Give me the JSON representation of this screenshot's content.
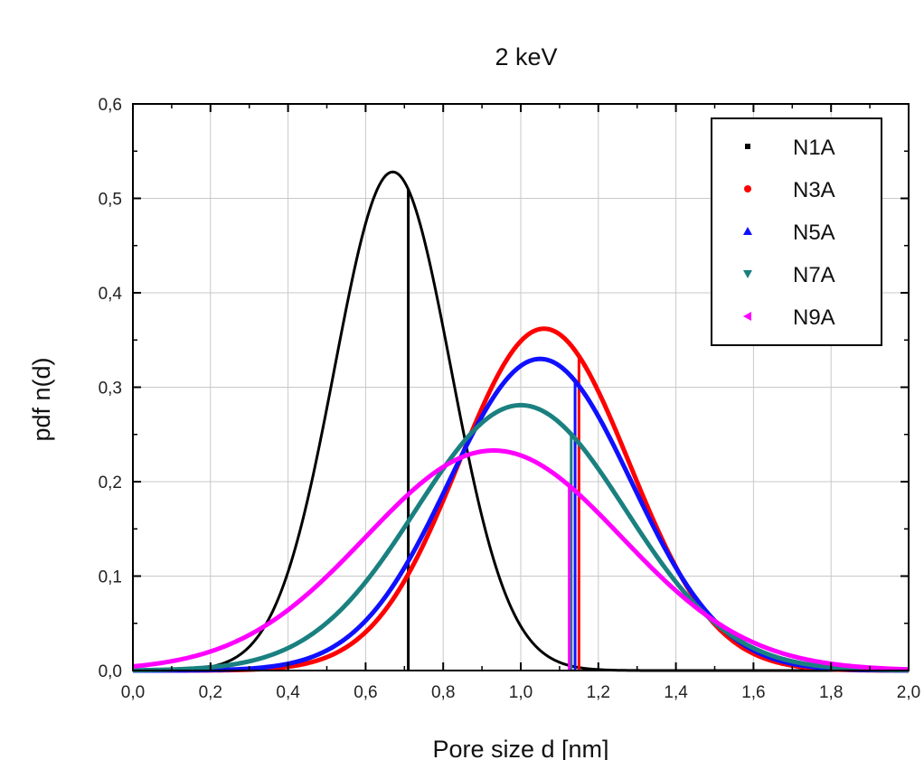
{
  "chart_data": {
    "type": "line",
    "title": "2 keV",
    "xlabel": "Pore size d [nm]",
    "ylabel": "pdf n(d)",
    "xlim": [
      0.0,
      2.0
    ],
    "ylim": [
      0.0,
      0.6
    ],
    "x_ticks": [
      "0,0",
      "0,2",
      "0,4",
      "0,6",
      "0,8",
      "1,0",
      "1,2",
      "1,4",
      "1,6",
      "1,8",
      "2,0"
    ],
    "y_ticks": [
      "0,0",
      "0,1",
      "0,2",
      "0,3",
      "0,4",
      "0,5",
      "0,6"
    ],
    "grid": true,
    "legend_position": "top-right",
    "series": [
      {
        "name": "N1A",
        "color": "#000000",
        "marker": "square",
        "peak_x": 0.67,
        "peak_y": 0.528,
        "sigma": 0.15,
        "mean_marker_x": 0.71
      },
      {
        "name": "N3A",
        "color": "#ff0000",
        "marker": "circle",
        "peak_x": 1.06,
        "peak_y": 0.362,
        "sigma": 0.22,
        "mean_marker_x": 1.15
      },
      {
        "name": "N5A",
        "color": "#1010ff",
        "marker": "triangle-up",
        "peak_x": 1.05,
        "peak_y": 0.33,
        "sigma": 0.235,
        "mean_marker_x": 1.14
      },
      {
        "name": "N7A",
        "color": "#1a8080",
        "marker": "triangle-down",
        "peak_x": 1.0,
        "peak_y": 0.281,
        "sigma": 0.27,
        "mean_marker_x": 1.13
      },
      {
        "name": "N9A",
        "color": "#ff00ff",
        "marker": "triangle-left",
        "peak_x": 0.93,
        "peak_y": 0.233,
        "sigma": 0.33,
        "mean_marker_x": 1.125
      }
    ]
  }
}
